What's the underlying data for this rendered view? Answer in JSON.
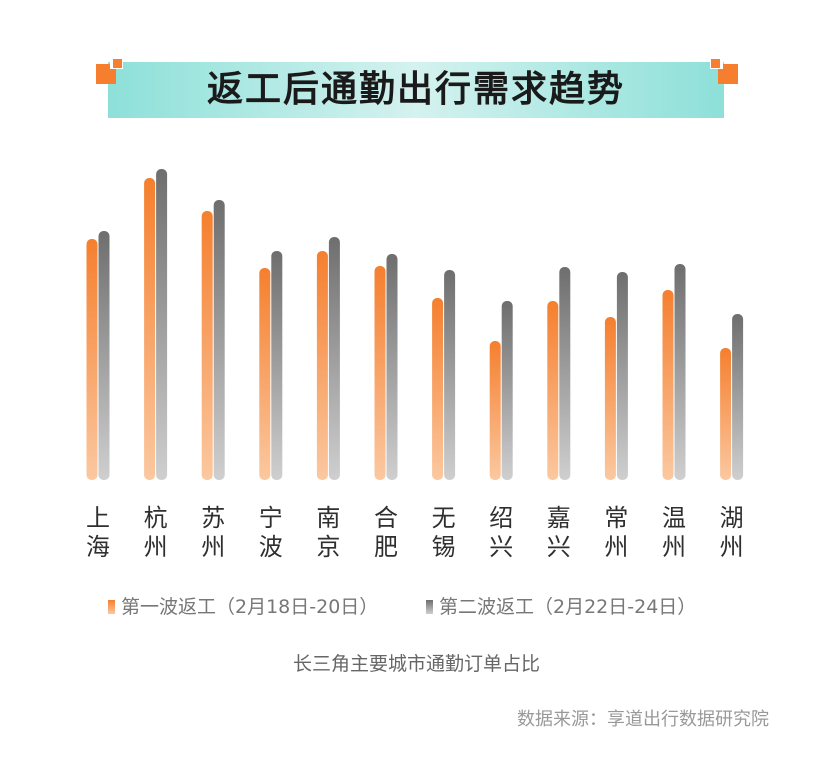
{
  "title": "返工后通勤出行需求趋势",
  "subtitle": "长三角主要城市通勤订单占比",
  "source": "数据来源：享道出行数据研究院",
  "colors": {
    "series1": "#f57f2e",
    "series2": "#7d7d7d",
    "banner": "#8de0d9",
    "deco": "#f57f2e"
  },
  "legend": {
    "series1": "第一波返工（2月18日-20日）",
    "series2": "第二波返工（2月22日-24日）"
  },
  "chart_data": {
    "type": "bar",
    "title": "返工后通勤出行需求趋势",
    "subtitle": "长三角主要城市通勤订单占比",
    "xlabel": "",
    "ylabel": "",
    "grid": false,
    "legend_position": "bottom",
    "categories": [
      "上海",
      "杭州",
      "苏州",
      "宁波",
      "南京",
      "合肥",
      "无锡",
      "绍兴",
      "嘉兴",
      "常州",
      "温州",
      "湖州"
    ],
    "series": [
      {
        "name": "第一波返工（2月18日-20日）",
        "values": [
          241,
          302,
          269,
          212,
          229,
          214,
          182,
          139,
          179,
          163,
          190,
          132
        ]
      },
      {
        "name": "第二波返工（2月22日-24日）",
        "values": [
          249,
          311,
          280,
          229,
          243,
          226,
          210,
          179,
          213,
          208,
          216,
          166
        ]
      }
    ],
    "ylim": [
      0,
      330
    ]
  }
}
